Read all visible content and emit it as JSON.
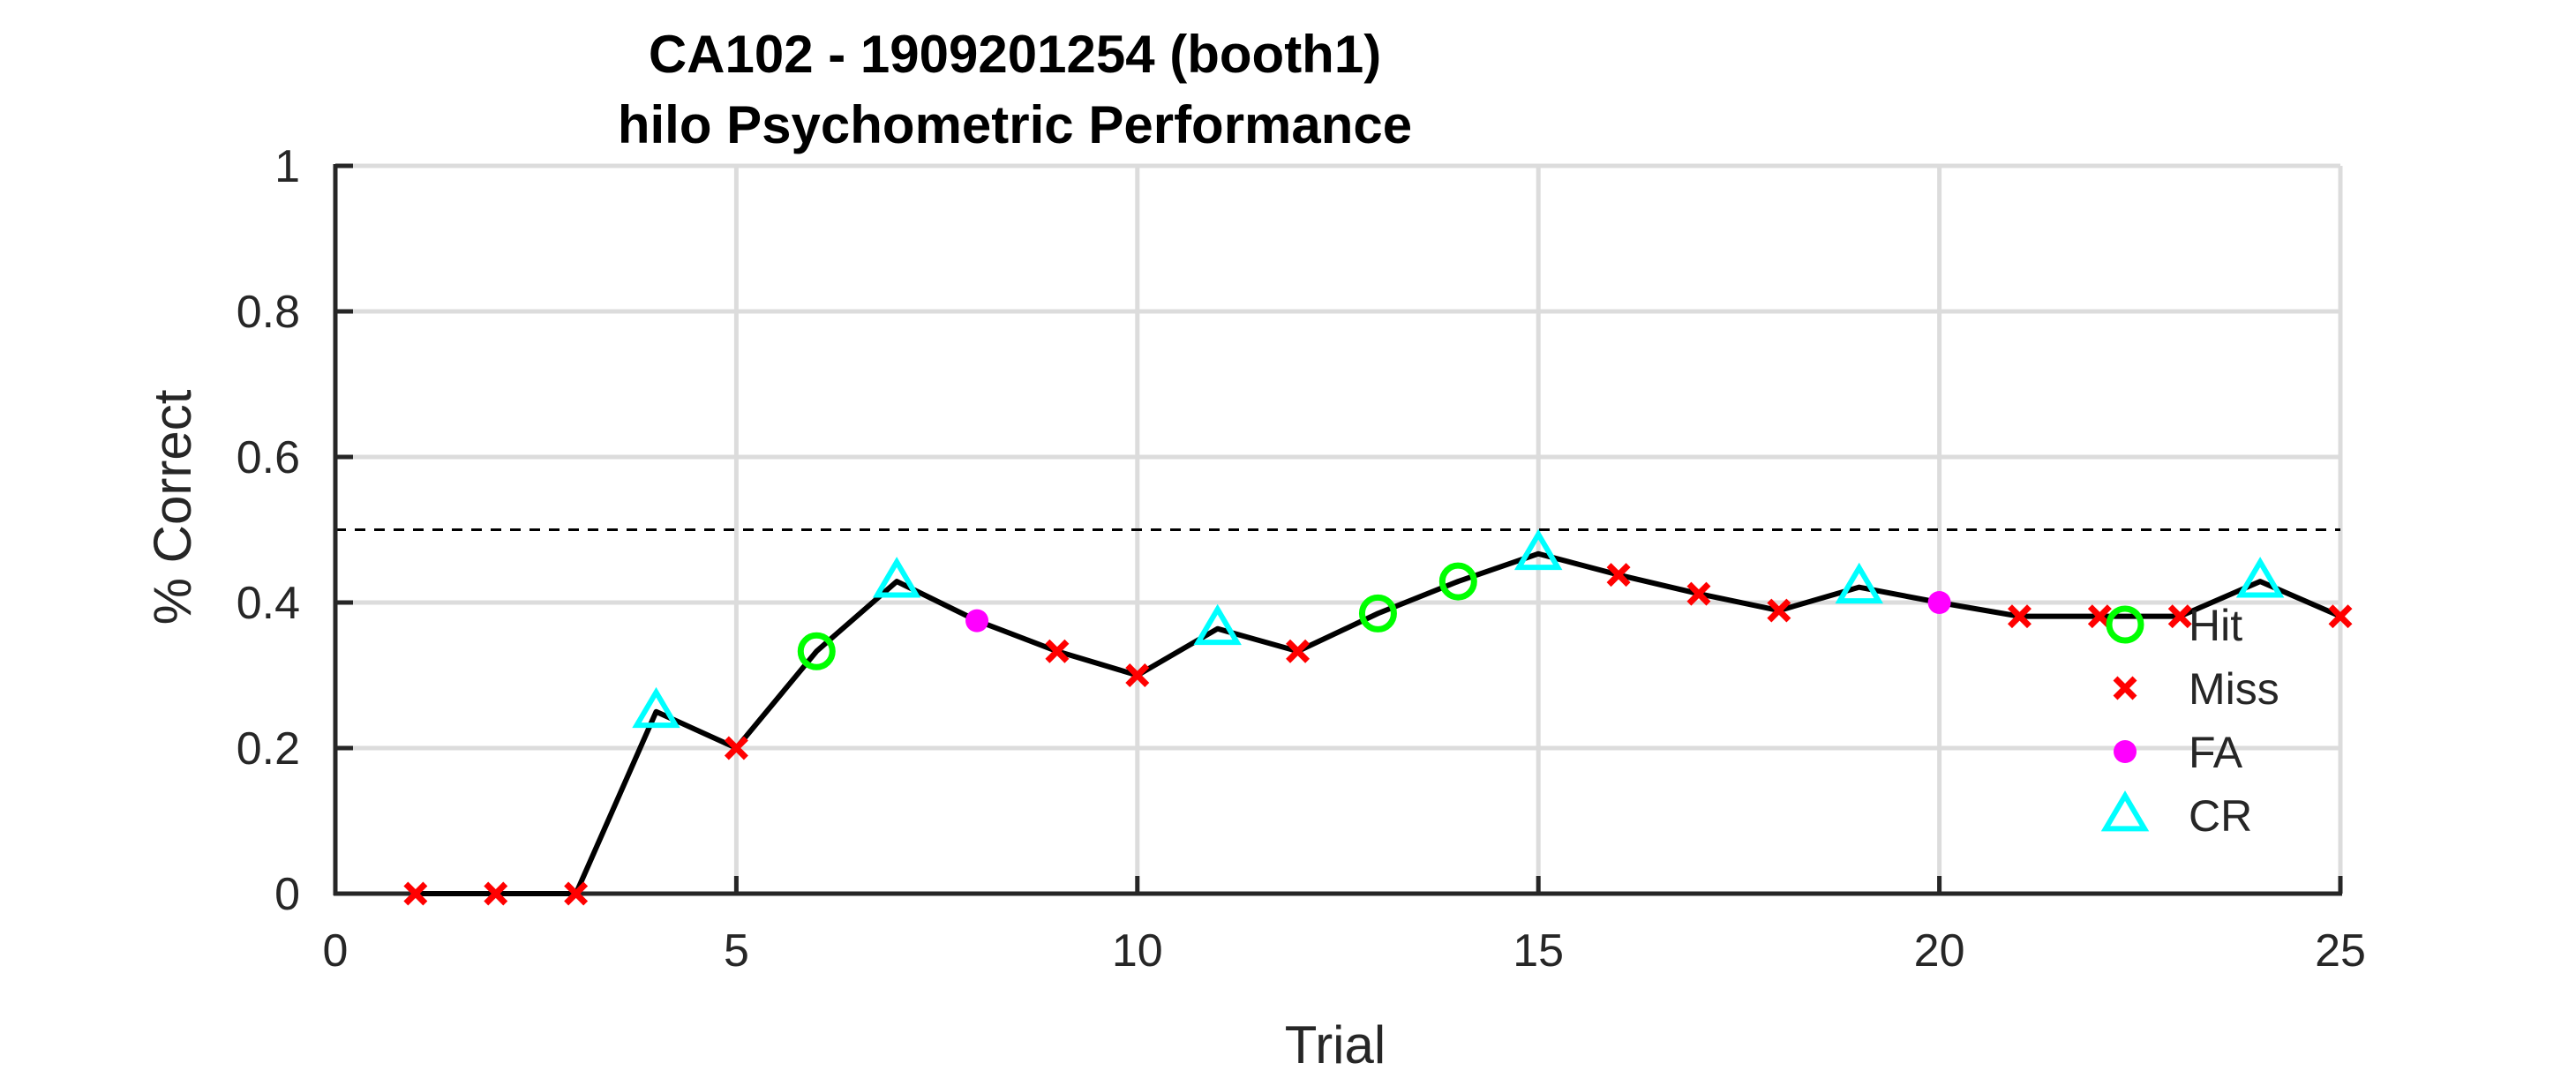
{
  "chart_data": {
    "type": "line",
    "title": "CA102 - 1909201254 (booth1)",
    "subtitle": "hilo Psychometric Performance",
    "xlabel": "Trial",
    "ylabel": "% Correct",
    "xlim": [
      0,
      25
    ],
    "ylim": [
      0,
      1
    ],
    "xticks": [
      "0",
      "5",
      "10",
      "15",
      "20",
      "25"
    ],
    "yticks": [
      "0",
      "0.2",
      "0.4",
      "0.6",
      "0.8",
      "1"
    ],
    "grid": true,
    "reference_line": {
      "y": 0.5,
      "style": "dashed"
    },
    "legend_placement": "right",
    "x": [
      1,
      2,
      3,
      4,
      5,
      6,
      7,
      8,
      9,
      10,
      11,
      12,
      13,
      14,
      15,
      16,
      17,
      18,
      19,
      20,
      21,
      22,
      23,
      24,
      25
    ],
    "y": [
      0,
      0,
      0,
      0.25,
      0.2,
      0.333,
      0.429,
      0.375,
      0.333,
      0.3,
      0.364,
      0.333,
      0.385,
      0.429,
      0.467,
      0.438,
      0.412,
      0.389,
      0.421,
      0.4,
      0.381,
      0.381,
      0.381,
      0.429,
      0.381
    ],
    "outcomes": [
      "Miss",
      "Miss",
      "Miss",
      "CR",
      "Miss",
      "Hit",
      "CR",
      "FA",
      "Miss",
      "Miss",
      "CR",
      "Miss",
      "Hit",
      "Hit",
      "CR",
      "Miss",
      "Miss",
      "Miss",
      "CR",
      "FA",
      "Miss",
      "Miss",
      "Miss",
      "CR",
      "Miss"
    ],
    "legend": [
      {
        "label": "Hit",
        "marker": "circle-open",
        "color": "#00ff00"
      },
      {
        "label": "Miss",
        "marker": "x",
        "color": "#ff0000"
      },
      {
        "label": "FA",
        "marker": "dot",
        "color": "#ff00ff"
      },
      {
        "label": "CR",
        "marker": "triangle-open",
        "color": "#00ffff"
      }
    ],
    "line_color": "#000000"
  }
}
